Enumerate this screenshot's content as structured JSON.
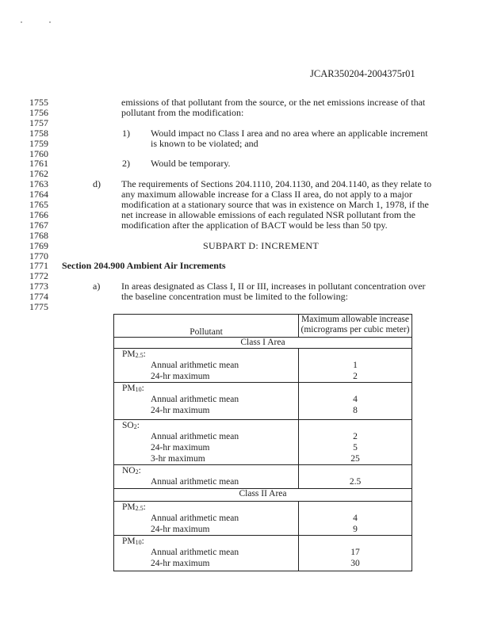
{
  "header_id": "JCAR350204-2004375r01",
  "line_numbers": [
    "1755",
    "1756",
    "1757",
    "1758",
    "1759",
    "1760",
    "1761",
    "1762",
    "1763",
    "1764",
    "1765",
    "1766",
    "1767",
    "1768",
    "1769",
    "1770",
    "1771",
    "1772",
    "1773",
    "1774",
    "1775"
  ],
  "para_intro": [
    "emissions of that pollutant from the source, or the net emissions increase of that",
    "pollutant from the modification:"
  ],
  "item1": {
    "label": "1)",
    "lines": [
      "Would impact no Class I area and no area where an applicable increment",
      "is known to be violated; and"
    ]
  },
  "item2": {
    "label": "2)",
    "lines": [
      "Would be temporary."
    ]
  },
  "item_d": {
    "label": "d)",
    "lines": [
      "The requirements of Sections 204.1110, 204.1130, and 204.1140, as they relate to",
      "any maximum allowable increase for a Class II area, do not apply to a major",
      "modification at a stationary source that was in existence on March 1, 1978, if the",
      "net increase in allowable emissions of each regulated NSR pollutant from the",
      "modification after the application of BACT would be less than 50 tpy."
    ]
  },
  "subpart_title": "SUBPART D:  INCREMENT",
  "section_heading": "Section 204.900  Ambient Air Increments",
  "item_a": {
    "label": "a)",
    "lines": [
      "In areas designated as Class I, II or III, increases in pollutant concentration over",
      "the baseline concentration must be limited to the following:"
    ]
  },
  "table": {
    "col_pollutant": "Pollutant",
    "col_max": [
      "Maximum allowable increase",
      "(micrograms per cubic meter)"
    ],
    "areas": [
      {
        "name": "Class I Area",
        "pollutants": [
          {
            "base": "PM",
            "sub": "2.5",
            "items": [
              {
                "label": "Annual arithmetic mean",
                "value": "1"
              },
              {
                "label": "24-hr maximum",
                "value": "2"
              }
            ]
          },
          {
            "base": "PM",
            "sub": "10",
            "items": [
              {
                "label": "Annual arithmetic mean",
                "value": "4"
              },
              {
                "label": "24-hr maximum",
                "value": "8"
              }
            ]
          },
          {
            "base": "SO",
            "sub": "2",
            "items": [
              {
                "label": "Annual arithmetic mean",
                "value": "2"
              },
              {
                "label": "24-hr maximum",
                "value": "5"
              },
              {
                "label": "3-hr maximum",
                "value": "25"
              }
            ]
          },
          {
            "base": "NO",
            "sub": "2",
            "items": [
              {
                "label": "Annual arithmetic mean",
                "value": "2.5"
              }
            ]
          }
        ]
      },
      {
        "name": "Class II Area",
        "pollutants": [
          {
            "base": "PM",
            "sub": "2.5",
            "items": [
              {
                "label": "Annual arithmetic mean",
                "value": "4"
              },
              {
                "label": "24-hr maximum",
                "value": "9"
              }
            ]
          },
          {
            "base": "PM",
            "sub": "10",
            "items": [
              {
                "label": "Annual arithmetic mean",
                "value": "17"
              },
              {
                "label": "24-hr maximum",
                "value": "30"
              }
            ]
          }
        ]
      }
    ]
  }
}
